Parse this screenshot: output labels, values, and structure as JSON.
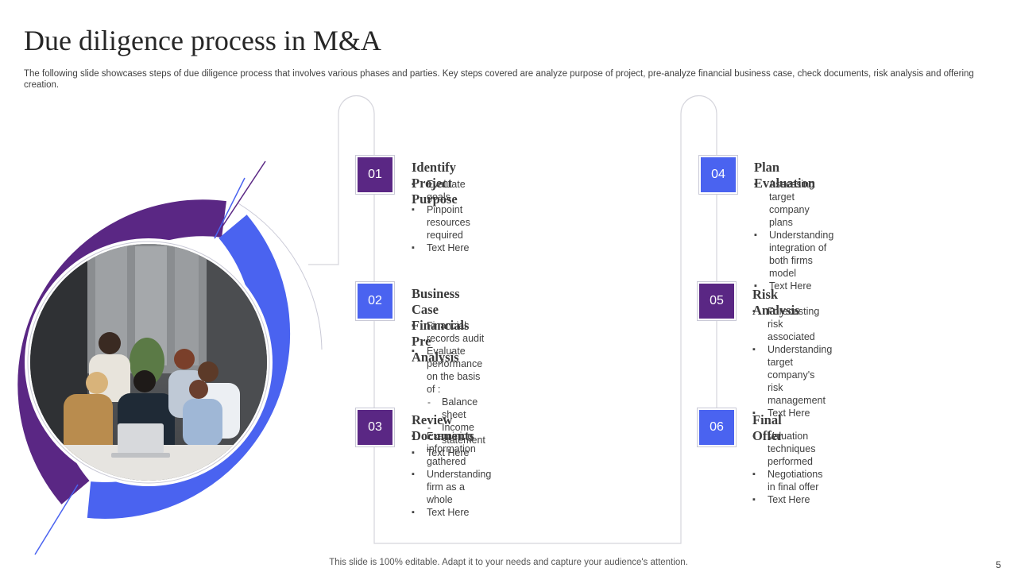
{
  "slide": {
    "title": "Due diligence process in M&A",
    "subtitle": "The following slide showcases steps of due diligence process that involves various phases and parties. Key steps covered are analyze  purpose of project, pre-analyze financial business case, check documents, risk analysis and offering creation.",
    "footer": "This slide is 100% editable. Adapt it to your needs and capture your audience's attention.",
    "page_number": "5"
  },
  "colors": {
    "purple": "#5a2784",
    "blue": "#4a63f0"
  },
  "photo": {
    "description_icon": "team-meeting-photo"
  },
  "steps": [
    {
      "number": "01",
      "title_lines": [
        "Identify Project Purpose"
      ],
      "points": [
        {
          "text": "Evaluate goals",
          "level": 1
        },
        {
          "text": "Pinpoint resources required",
          "level": 1
        },
        {
          "text": "Text Here",
          "level": 1
        }
      ]
    },
    {
      "number": "02",
      "title_lines": [
        "Business Case Financials",
        "Pre Analysis"
      ],
      "points": [
        {
          "text": "Financial records audit",
          "level": 1
        },
        {
          "text": "Evaluate performance  on the basis of :",
          "level": 1
        },
        {
          "text": "Balance sheet",
          "level": 2
        },
        {
          "text": "Income statement",
          "level": 2
        },
        {
          "text": "Text Here",
          "level": 1
        }
      ]
    },
    {
      "number": "03",
      "title_lines": [
        "Review Documents"
      ],
      "points": [
        {
          "text": "Examining information gathered",
          "level": 1
        },
        {
          "text": "Understanding  firm as a whole",
          "level": 1
        },
        {
          "text": "Text Here",
          "level": 1
        }
      ]
    },
    {
      "number": "04",
      "title_lines": [
        "Plan Evaluation"
      ],
      "points": [
        {
          "text": "Assessing target company plans",
          "level": 1
        },
        {
          "text": "Understanding  integration of both firms model",
          "level": 1
        },
        {
          "text": "Text Here",
          "level": 1
        }
      ]
    },
    {
      "number": "05",
      "title_lines": [
        "Risk Analysis"
      ],
      "points": [
        {
          "text": "Forecasting risk associated",
          "level": 1
        },
        {
          "text": "Understanding  target company's risk",
          "level": 1
        },
        {
          "text": "management",
          "level": 0
        },
        {
          "text": "Text Here",
          "level": 1
        }
      ]
    },
    {
      "number": "06",
      "title_lines": [
        "Final Offer"
      ],
      "points": [
        {
          "text": "Valuation techniques performed",
          "level": 1
        },
        {
          "text": "Negotiations in final offer",
          "level": 1
        },
        {
          "text": "Text Here",
          "level": 1
        }
      ]
    }
  ]
}
